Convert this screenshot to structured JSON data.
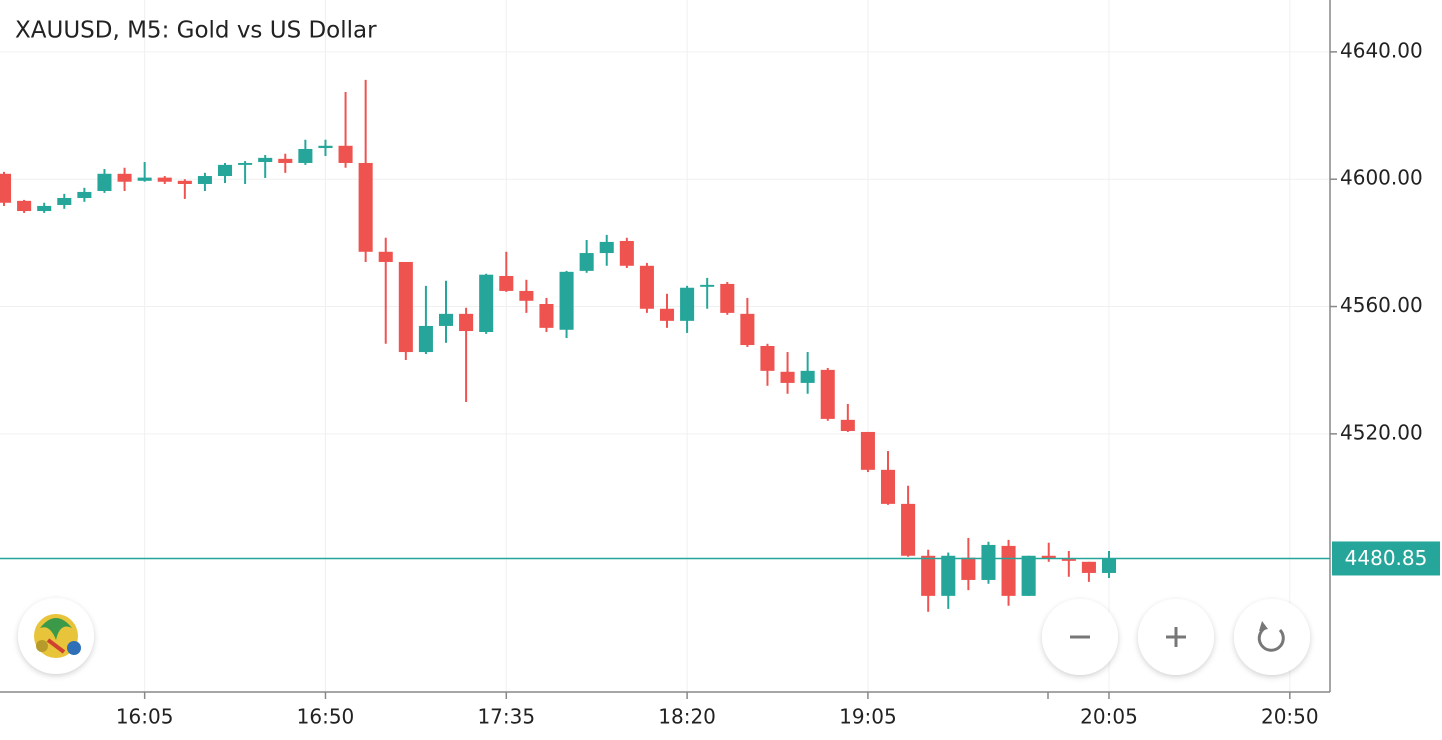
{
  "chart_data": {
    "type": "candlestick",
    "title": "XAUUSD, M5: Gold vs US Dollar",
    "x": [
      "15:30",
      "15:35",
      "15:40",
      "15:45",
      "15:50",
      "15:55",
      "16:00",
      "16:05",
      "16:10",
      "16:15",
      "16:20",
      "16:25",
      "16:30",
      "16:35",
      "16:40",
      "16:45",
      "16:50",
      "16:55",
      "17:00",
      "17:05",
      "17:10",
      "17:15",
      "17:20",
      "17:25",
      "17:30",
      "17:35",
      "17:40",
      "17:45",
      "17:50",
      "17:55",
      "18:00",
      "18:05",
      "18:10",
      "18:15",
      "18:20",
      "18:25",
      "18:30",
      "18:35",
      "18:40",
      "18:45",
      "18:50",
      "18:55",
      "19:00",
      "19:05",
      "19:10",
      "19:15",
      "19:20",
      "19:25",
      "19:30",
      "19:35",
      "19:40",
      "19:45",
      "19:50",
      "19:55",
      "20:00",
      "20:05"
    ],
    "open": [
      4601.7,
      4593.2,
      4590.0,
      4591.9,
      4594.1,
      4596.3,
      4601.7,
      4599.5,
      4600.5,
      4599.5,
      4598.5,
      4601.0,
      4604.5,
      4605.4,
      4606.4,
      4605.1,
      4609.8,
      4610.5,
      4605.1,
      4577.2,
      4574.0,
      4545.7,
      4553.9,
      4557.7,
      4552.0,
      4569.6,
      4564.9,
      4560.8,
      4552.7,
      4571.2,
      4576.8,
      4580.6,
      4572.8,
      4559.3,
      4555.5,
      4566.2,
      4567.1,
      4557.7,
      4547.6,
      4539.5,
      4536.0,
      4540.1,
      4524.4,
      4520.6,
      4508.7,
      4498.0,
      4481.7,
      4469.1,
      4481.1,
      4474.1,
      4484.8,
      4469.1,
      4481.7,
      4480.7,
      4479.8,
      4476.3
    ],
    "high": [
      4602.3,
      4593.5,
      4592.6,
      4595.4,
      4597.3,
      4603.2,
      4603.6,
      4605.4,
      4601.0,
      4600.0,
      4602.0,
      4605.1,
      4605.7,
      4607.6,
      4608.0,
      4612.4,
      4612.4,
      4627.4,
      4631.2,
      4581.6,
      4574.0,
      4566.5,
      4568.1,
      4559.6,
      4570.3,
      4577.2,
      4568.4,
      4562.7,
      4571.2,
      4580.9,
      4582.5,
      4581.6,
      4573.7,
      4564.0,
      4566.5,
      4569.0,
      4567.7,
      4562.7,
      4548.3,
      4545.7,
      4545.7,
      4540.7,
      4529.4,
      4520.6,
      4514.6,
      4503.7,
      4483.6,
      4482.7,
      4487.3,
      4486.1,
      4486.7,
      4481.7,
      4485.8,
      4483.2,
      4479.8,
      4483.2
    ],
    "low": [
      4591.6,
      4589.4,
      4589.4,
      4590.7,
      4592.9,
      4595.7,
      4596.3,
      4599.2,
      4598.5,
      4593.8,
      4596.3,
      4598.8,
      4598.5,
      4600.4,
      4602.0,
      4604.5,
      4607.3,
      4603.6,
      4574.0,
      4548.3,
      4543.2,
      4545.1,
      4548.6,
      4530.0,
      4551.4,
      4564.6,
      4558.0,
      4552.0,
      4550.1,
      4570.6,
      4572.8,
      4572.1,
      4558.0,
      4553.3,
      4551.7,
      4559.3,
      4557.4,
      4547.3,
      4535.1,
      4532.6,
      4532.6,
      4524.1,
      4520.6,
      4508.0,
      4497.7,
      4481.4,
      4464.1,
      4465.0,
      4470.9,
      4472.9,
      4466.0,
      4469.1,
      4479.8,
      4475.1,
      4473.5,
      4474.7
    ],
    "close": [
      4592.6,
      4590.0,
      4591.6,
      4594.1,
      4596.0,
      4601.7,
      4599.2,
      4600.5,
      4599.2,
      4598.5,
      4601.0,
      4604.5,
      4605.1,
      4606.7,
      4605.1,
      4609.5,
      4610.5,
      4605.1,
      4577.2,
      4574.0,
      4545.7,
      4553.9,
      4557.7,
      4552.3,
      4570.0,
      4564.9,
      4561.8,
      4553.3,
      4570.9,
      4576.8,
      4580.3,
      4572.8,
      4559.3,
      4555.5,
      4565.9,
      4566.8,
      4558.0,
      4547.9,
      4539.8,
      4536.0,
      4539.8,
      4524.7,
      4520.9,
      4508.7,
      4498.0,
      4481.7,
      4469.1,
      4481.7,
      4474.1,
      4485.1,
      4469.1,
      4481.7,
      4480.7,
      4480.1,
      4476.3,
      4480.85
    ],
    "up_color": "#26a69a",
    "down_color": "#ef5350",
    "xlim": [
      "15:29",
      "21:00"
    ],
    "xticks": [
      "16:05",
      "16:50",
      "17:35",
      "18:20",
      "19:05",
      "20:05",
      "20:50"
    ],
    "ylim": [
      4438.9,
      4656.3
    ],
    "yticks": [
      {
        "value": 4520,
        "label": "4520.00"
      },
      {
        "value": 4560,
        "label": "4560.00"
      },
      {
        "value": 4600,
        "label": "4600.00"
      },
      {
        "value": 4640,
        "label": "4640.00"
      }
    ],
    "grid": true,
    "current_price": 4480.85,
    "current_price_color": "#26a69a"
  }
}
